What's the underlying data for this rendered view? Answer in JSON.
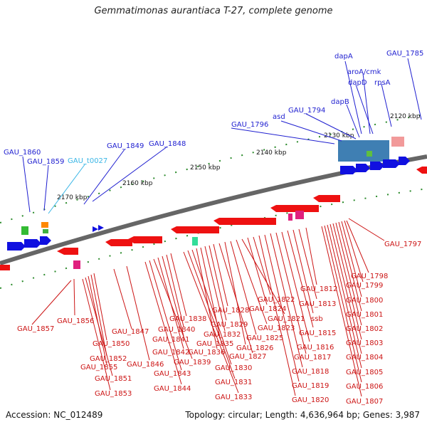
{
  "title": "Gemmatimonas aurantiaca T-27, complete genome",
  "accession": "Accession: NC_012489",
  "topology": "Topology: circular; Length: 4,636,964 bp; Genes: 3,987",
  "kbp_ticks": [
    "2120 kbp",
    "2130 kbp",
    "2140 kbp",
    "2150 kbp",
    "2160 kbp",
    "2170 kbp"
  ],
  "top_labels": [
    {
      "text": "GAU_1785",
      "color": "blue"
    },
    {
      "text": "dapA",
      "color": "blue"
    },
    {
      "text": "aroA/cmk",
      "color": "blue"
    },
    {
      "text": "dapD",
      "color": "blue"
    },
    {
      "text": "rpsA",
      "color": "blue"
    },
    {
      "text": "dapB",
      "color": "blue"
    },
    {
      "text": "GAU_1794",
      "color": "blue"
    },
    {
      "text": "asd",
      "color": "blue"
    },
    {
      "text": "GAU_1796",
      "color": "blue"
    },
    {
      "text": "GAU_1848",
      "color": "blue"
    },
    {
      "text": "GAU_1849",
      "color": "blue"
    },
    {
      "text": "GAU_1860",
      "color": "blue"
    },
    {
      "text": "GAU_1859",
      "color": "blue"
    },
    {
      "text": "GAU_t0027",
      "color": "cyan"
    }
  ],
  "bottom_labels": [
    "GAU_1797",
    "GAU_1798",
    "GAU_1799",
    "GAU_1800",
    "GAU_1801",
    "GAU_1802",
    "GAU_1803",
    "GAU_1804",
    "GAU_1805",
    "GAU_1806",
    "GAU_1807",
    "GAU_1812",
    "GAU_1813",
    "ssb",
    "GAU_1815",
    "GAU_1816",
    "GAU_1817",
    "GAU_1818",
    "GAU_1819",
    "GAU_1820",
    "GAU_1822",
    "GAU_1824",
    "GAU_1821",
    "GAU_1823",
    "GAU_1825",
    "GAU_1826",
    "GAU_1827",
    "GAU_1828",
    "GAU_1829",
    "GAU_1832",
    "GAU_1835",
    "GAU_1836",
    "GAU_1830",
    "GAU_1831",
    "GAU_1833",
    "GAU_1838",
    "GAU_1840",
    "GAU_1841",
    "GAU_1842",
    "GAU_1839",
    "GAU_1843",
    "GAU_1844",
    "GAU_1846",
    "GAU_1847",
    "GAU_1850",
    "GAU_1852",
    "GAU_1855",
    "GAU_1851",
    "GAU_1853",
    "GAU_1856",
    "GAU_1857"
  ]
}
